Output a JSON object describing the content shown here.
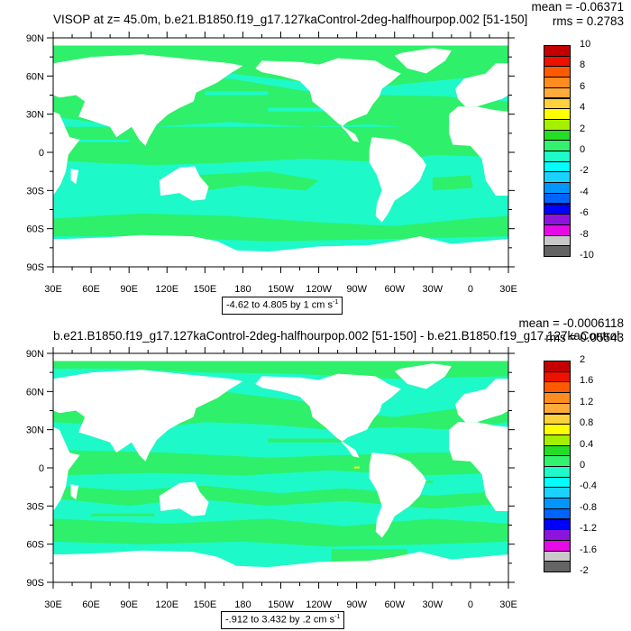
{
  "panels": [
    {
      "title": "VISOP at z=  45.0m, b.e21.B1850.f19_g17.127kaControl-2deg-halfhourpop.002 [51-150]",
      "mean": "mean = -0.06371",
      "rms": "rms = 0.2783",
      "contour_info_text": "-4.62 to 4.805 by 1 cm s",
      "contour_info_exp": "-1",
      "colorbar_labels": [
        "10",
        "8",
        "6",
        "4",
        "2",
        "0",
        "-2",
        "-4",
        "-6",
        "-8",
        "-10"
      ]
    },
    {
      "title": "b.e21.B1850.f19_g17.127kaControl-2deg-halfhourpop.002 [51-150] - b.e21.B1850.f19_g17.127kaControl",
      "mean": "mean = -0.0006118",
      "rms": "rms = 0.05543",
      "contour_info_text": "-.912 to 3.432 by .2 cm s",
      "contour_info_exp": "-1",
      "colorbar_labels": [
        "2",
        "1.6",
        "1.2",
        "0.8",
        "0.4",
        "0",
        "-0.4",
        "-0.8",
        "-1.2",
        "-1.6",
        "-2"
      ]
    }
  ],
  "colors": {
    "colorbar": [
      "#c40000",
      "#ee1000",
      "#ff5a00",
      "#ff8c1e",
      "#ffab3c",
      "#ffd23c",
      "#ffff00",
      "#a5f000",
      "#25dd25",
      "#32f26e",
      "#1efac8",
      "#00ffff",
      "#19d2ff",
      "#0096ff",
      "#0064ff",
      "#0000ff",
      "#8c14dc",
      "#e60ae6",
      "#c8c8c8",
      "#646464"
    ],
    "ocean_green": "#2ef06a",
    "ocean_cyan": "#1ef9c9",
    "land": "#ffffff"
  },
  "chart_data": [
    {
      "type": "heatmap",
      "title": "VISOP at z=  45.0m, b.e21.B1850.f19_g17.127kaControl-2deg-halfhourpop.002 [51-150]",
      "x_tick_labels": [
        "30E",
        "60E",
        "90E",
        "120E",
        "150E",
        "180",
        "150W",
        "120W",
        "90W",
        "60W",
        "30W",
        "0",
        "30E"
      ],
      "y_tick_labels": [
        "90N",
        "60N",
        "30N",
        "0",
        "30S",
        "60S",
        "90S"
      ],
      "xlim": [
        30,
        390
      ],
      "ylim": [
        -90,
        90
      ],
      "contour_min": -4.62,
      "contour_max": 4.805,
      "contour_interval": 1,
      "units": "cm s^-1",
      "levels": [
        -10,
        -9,
        -8,
        -7,
        -6,
        -5,
        -4,
        -3,
        -2,
        -1,
        0,
        1,
        2,
        3,
        4,
        5,
        6,
        7,
        8,
        9,
        10
      ],
      "mean": -0.06371,
      "rms": 0.2783
    },
    {
      "type": "heatmap",
      "title": "b.e21.B1850.f19_g17.127kaControl-2deg-halfhourpop.002 [51-150] - b.e21.B1850.f19_g17.127kaControl",
      "x_tick_labels": [
        "30E",
        "60E",
        "90E",
        "120E",
        "150E",
        "180",
        "150W",
        "120W",
        "90W",
        "60W",
        "30W",
        "0",
        "30E"
      ],
      "y_tick_labels": [
        "90N",
        "60N",
        "30N",
        "0",
        "30S",
        "60S",
        "90S"
      ],
      "xlim": [
        30,
        390
      ],
      "ylim": [
        -90,
        90
      ],
      "contour_min": -0.912,
      "contour_max": 3.432,
      "contour_interval": 0.2,
      "units": "cm s^-1",
      "levels": [
        -2,
        -1.8,
        -1.6,
        -1.4,
        -1.2,
        -1,
        -0.8,
        -0.6,
        -0.4,
        -0.2,
        0,
        0.2,
        0.4,
        0.6,
        0.8,
        1,
        1.2,
        1.4,
        1.6,
        1.8,
        2
      ],
      "mean": -0.0006118,
      "rms": 0.05543
    }
  ]
}
